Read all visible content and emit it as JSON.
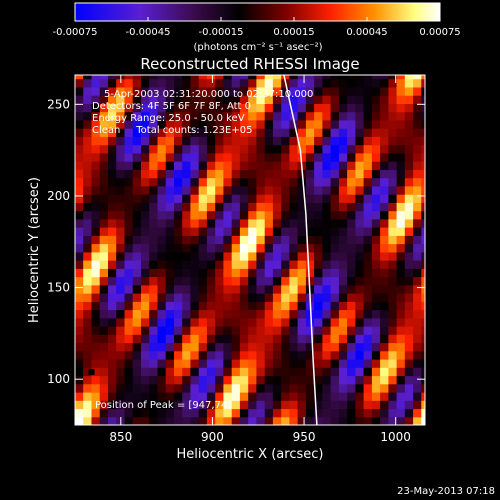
{
  "chart_data": {
    "type": "heatmap",
    "title": "Reconstructed RHESSI Image",
    "xlabel": "Heliocentric X (arcsec)",
    "ylabel": "Heliocentric Y (arcsec)",
    "xlim": [
      825,
      1016
    ],
    "ylim": [
      75,
      266
    ],
    "x_ticks": [
      850,
      900,
      950,
      1000
    ],
    "y_ticks": [
      100,
      150,
      200,
      250
    ],
    "colorbar": {
      "min": -0.00075,
      "max": 0.00075,
      "ticks": [
        "-0.00075",
        "-0.00045",
        "-0.00015",
        "0.00015",
        "0.00045",
        "0.00075"
      ],
      "units_label": "(photons cm⁻² s⁻¹ asec⁻²)",
      "colormap": [
        "#0000ff",
        "#5a1fd0",
        "#3a0a4a",
        "#000000",
        "#800000",
        "#ff2000",
        "#ff9000",
        "#ffff80",
        "#ffffff"
      ]
    },
    "annotations": {
      "time_range": "5-Apr-2003 02:31:20.000 to 02:37:10.000",
      "detectors": "Detectors: 4F 5F 6F 7F 8F, Att 0",
      "energy_range": "Energy Range: 25.0 - 50.0 keV",
      "clean_counts": "Clean     Total counts: 1.23E+05",
      "peak_position": "Position of Peak = [947,74]"
    },
    "limb_curve": [
      [
        939,
        266
      ],
      [
        948,
        225
      ],
      [
        951,
        190
      ],
      [
        953,
        150
      ],
      [
        955,
        110
      ],
      [
        957,
        75
      ]
    ],
    "marker": {
      "x": 834,
      "y": 104
    },
    "footer_date": "23-May-2013 07:18",
    "stripe_pattern": {
      "orientation": "diagonal lower-left to upper-right",
      "period_arcsec": 33,
      "peak_value": 0.00075,
      "trough_value": -0.00075
    }
  }
}
